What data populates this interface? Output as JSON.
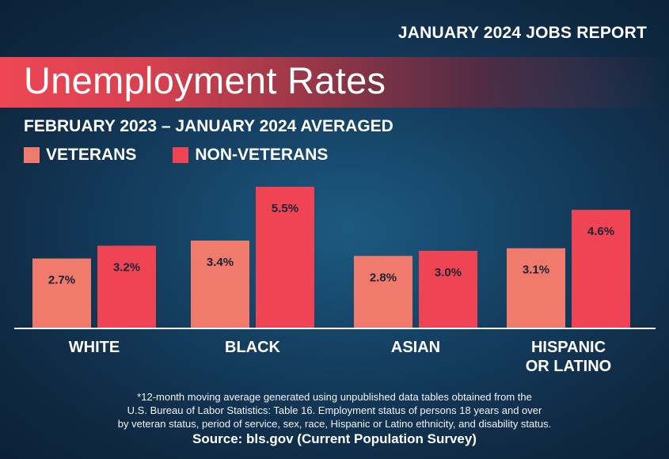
{
  "header": {
    "report_label": "JANUARY 2024 JOBS REPORT"
  },
  "colors": {
    "veterans": "#f07a6c",
    "non_veterans": "#ef4453",
    "axis": "#ffffff",
    "value_text": "#1b2336"
  },
  "chart_data": {
    "type": "bar",
    "title": "Unemployment Rates",
    "subtitle": "FEBRUARY 2023 – JANUARY 2024 AVERAGED",
    "categories": [
      "WHITE",
      "BLACK",
      "ASIAN",
      "HISPANIC OR LATINO"
    ],
    "category_lines": [
      [
        "WHITE"
      ],
      [
        "BLACK"
      ],
      [
        "ASIAN"
      ],
      [
        "HISPANIC",
        "OR LATINO"
      ]
    ],
    "series": [
      {
        "name": "VETERANS",
        "values": [
          2.7,
          3.4,
          2.8,
          3.1
        ],
        "labels": [
          "2.7%",
          "3.4%",
          "2.8%",
          "3.1%"
        ]
      },
      {
        "name": "NON-VETERANS",
        "values": [
          3.2,
          5.5,
          3.0,
          4.6
        ],
        "labels": [
          "3.2%",
          "5.5%",
          "3.0%",
          "4.6%"
        ]
      }
    ],
    "ylim": [
      0,
      5.5
    ],
    "grid": false,
    "legend_position": "top-left"
  },
  "footnote": {
    "lines": [
      "*12-month moving average generated using unpublished data tables obtained from the",
      "U.S. Bureau of Labor Statistics: Table 16. Employment status of persons 18 years and over",
      "by veteran status, period of service, sex, race, Hispanic or Latino ethnicity, and disability status."
    ]
  },
  "source": "Source: bls.gov (Current Population Survey)"
}
